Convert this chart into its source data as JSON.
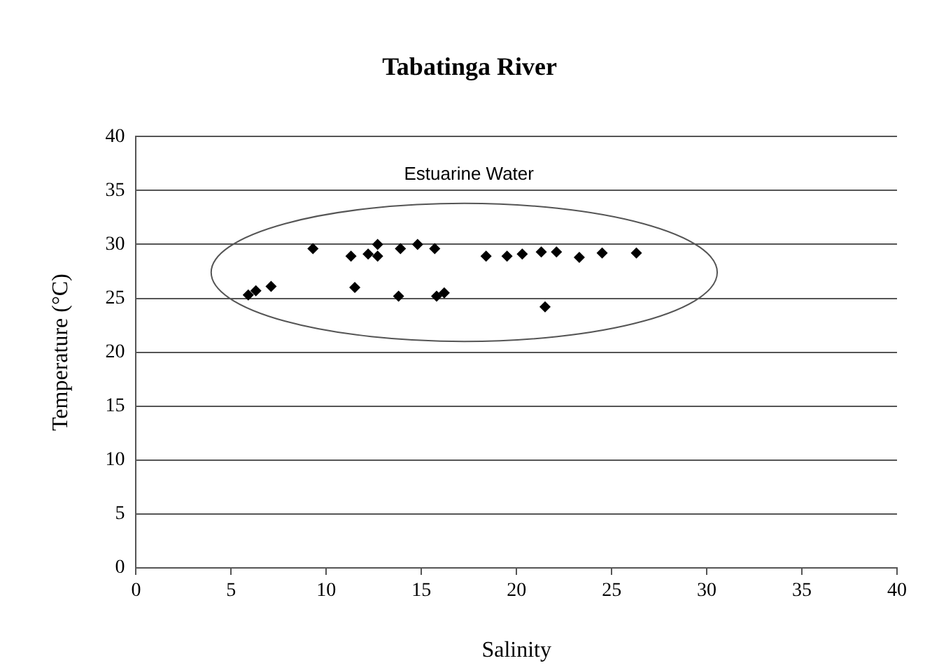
{
  "chart_data": {
    "type": "scatter",
    "title": "Tabatinga River",
    "xlabel": "Salinity",
    "ylabel": "Temperature (°C)",
    "annotations": [
      "Estuarine Water"
    ],
    "x": [
      5.9,
      6.3,
      7.1,
      9.3,
      11.3,
      11.5,
      12.2,
      12.7,
      12.7,
      13.8,
      13.9,
      14.8,
      15.7,
      15.8,
      16.2,
      18.4,
      19.5,
      20.3,
      21.3,
      21.5,
      22.1,
      23.3,
      24.5,
      26.3
    ],
    "series": [
      {
        "color": "#000000",
        "values": [
          25.3,
          25.7,
          26.1,
          29.6,
          28.9,
          26.0,
          29.1,
          30.0,
          28.9,
          25.2,
          29.6,
          30.0,
          29.6,
          25.2,
          25.5,
          28.9,
          28.9,
          29.1,
          29.3,
          24.2,
          29.3,
          28.8,
          29.2,
          29.2
        ]
      }
    ],
    "xlim": [
      0,
      40
    ],
    "xticks": [
      0,
      5,
      10,
      15,
      20,
      25,
      30,
      35,
      40
    ],
    "ylim": [
      0,
      40
    ],
    "yticks": [
      0,
      5,
      10,
      15,
      20,
      25,
      30,
      35,
      40
    ],
    "grid": "y",
    "legend": false,
    "marker": "diamond"
  }
}
